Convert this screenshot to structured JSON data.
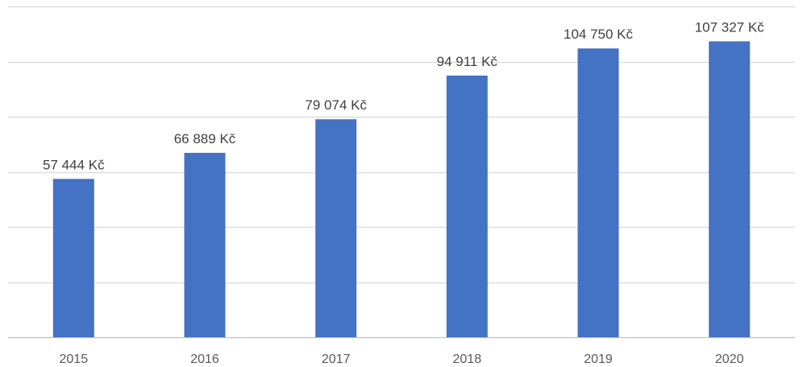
{
  "chart_data": {
    "type": "bar",
    "categories": [
      "2015",
      "2016",
      "2017",
      "2018",
      "2019",
      "2020"
    ],
    "values": [
      57444,
      66889,
      79074,
      94911,
      104750,
      107327
    ],
    "data_labels": [
      "57 444 Kč",
      "66 889 Kč",
      "79 074 Kč",
      "94 911 Kč",
      "104 750 Kč",
      "107 327 Kč"
    ],
    "title": "",
    "xlabel": "",
    "ylabel": "",
    "ylim": [
      0,
      120000
    ],
    "gridlines": true,
    "legend": false,
    "colors": {
      "bar": "#4472C4",
      "grid": "#D9D9D9",
      "axis": "#BFBFBF"
    }
  }
}
